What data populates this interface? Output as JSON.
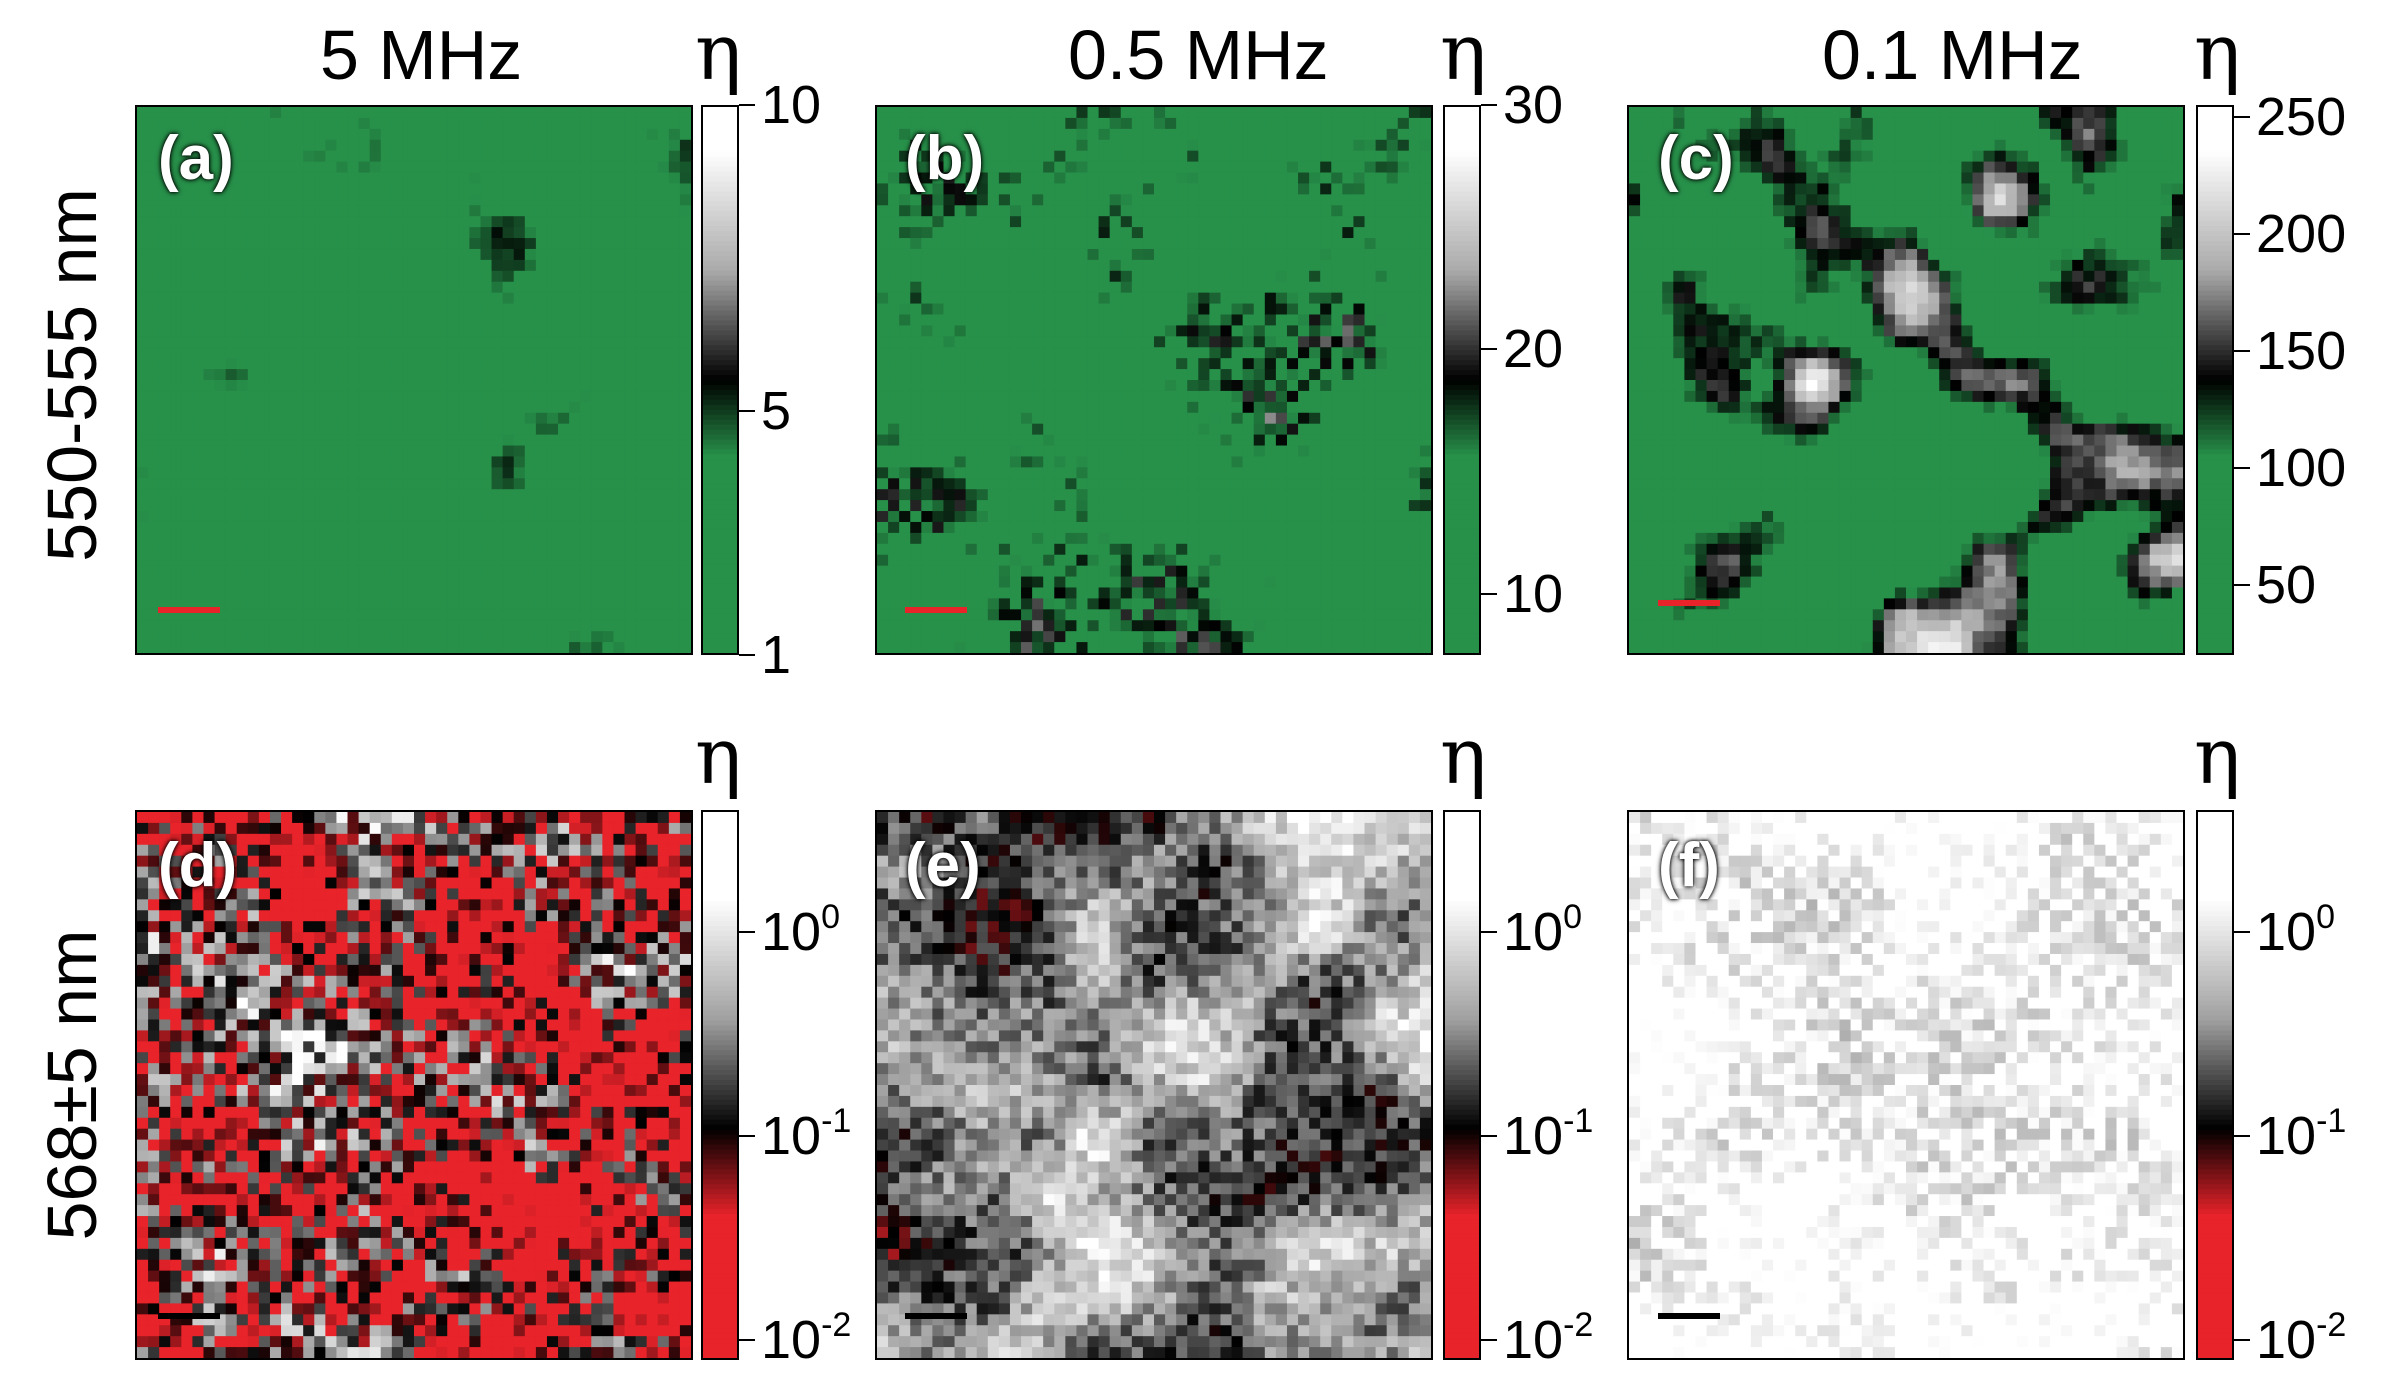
{
  "columns": [
    "5 MHz",
    "0.5 MHz",
    "0.1 MHz"
  ],
  "rows": [
    "550-555 nm",
    "568±5 nm"
  ],
  "colorbar_symbol": "η",
  "panels": [
    {
      "label": "(a)",
      "cmap": "green",
      "cbar_ticks": [
        {
          "v": 10,
          "t": "10"
        },
        {
          "v": 5,
          "t": "5"
        },
        {
          "v": 1,
          "t": "1"
        }
      ],
      "range": [
        1,
        10
      ],
      "scalebar_color": "#e8232a"
    },
    {
      "label": "(b)",
      "cmap": "green",
      "cbar_ticks": [
        {
          "v": 30,
          "t": "30"
        },
        {
          "v": 20,
          "t": "20"
        },
        {
          "v": 10,
          "t": "10"
        }
      ],
      "range": [
        7.5,
        30
      ],
      "scalebar_color": "#e8232a"
    },
    {
      "label": "(c)",
      "cmap": "green",
      "cbar_ticks": [
        {
          "v": 250,
          "t": "250"
        },
        {
          "v": 200,
          "t": "200"
        },
        {
          "v": 150,
          "t": "150"
        },
        {
          "v": 100,
          "t": "100"
        },
        {
          "v": 50,
          "t": "50"
        }
      ],
      "range": [
        20,
        255
      ],
      "scalebar_color": "#e8232a"
    },
    {
      "label": "(d)",
      "cmap": "red",
      "cbar_ticks": [
        {
          "v": 0,
          "base": "10",
          "exp": "0"
        },
        {
          "v": -1,
          "base": "10",
          "exp": "-1"
        },
        {
          "v": -2,
          "base": "10",
          "exp": "-2"
        }
      ],
      "range": [
        -2.1,
        0.6
      ],
      "scalebar_color": "#000000"
    },
    {
      "label": "(e)",
      "cmap": "red",
      "cbar_ticks": [
        {
          "v": 0,
          "base": "10",
          "exp": "0"
        },
        {
          "v": -1,
          "base": "10",
          "exp": "-1"
        },
        {
          "v": -2,
          "base": "10",
          "exp": "-2"
        }
      ],
      "range": [
        -2.1,
        0.6
      ],
      "scalebar_color": "#000000"
    },
    {
      "label": "(f)",
      "cmap": "red",
      "cbar_ticks": [
        {
          "v": 0,
          "base": "10",
          "exp": "0"
        },
        {
          "v": -1,
          "base": "10",
          "exp": "-1"
        },
        {
          "v": -2,
          "base": "10",
          "exp": "-2"
        }
      ],
      "range": [
        -2.1,
        0.6
      ],
      "scalebar_color": "#000000"
    }
  ],
  "colors": {
    "green": "#27914a",
    "red": "#e8232a",
    "black": "#000000",
    "white": "#ffffff"
  },
  "chart_data": {
    "type": "heatmap",
    "panels": [
      {
        "label": "(a)",
        "column": "5 MHz",
        "row": "550-555 nm",
        "colorbar_range": [
          1,
          10
        ],
        "colorbar_ticks": [
          1,
          5,
          10
        ],
        "colormap": "green-black-white"
      },
      {
        "label": "(b)",
        "column": "0.5 MHz",
        "row": "550-555 nm",
        "colorbar_range": [
          7.5,
          30
        ],
        "colorbar_ticks": [
          10,
          20,
          30
        ],
        "colormap": "green-black-white"
      },
      {
        "label": "(c)",
        "column": "0.1 MHz",
        "row": "550-555 nm",
        "colorbar_range": [
          20,
          255
        ],
        "colorbar_ticks": [
          50,
          100,
          150,
          200,
          250
        ],
        "colormap": "green-black-white"
      },
      {
        "label": "(d)",
        "column": "5 MHz",
        "row": "568±5 nm",
        "colorbar_scale": "log",
        "colorbar_ticks": [
          0.01,
          0.1,
          1
        ],
        "colormap": "red-black-white"
      },
      {
        "label": "(e)",
        "column": "0.5 MHz",
        "row": "568±5 nm",
        "colorbar_scale": "log",
        "colorbar_ticks": [
          0.01,
          0.1,
          1
        ],
        "colormap": "red-black-white"
      },
      {
        "label": "(f)",
        "column": "0.1 MHz",
        "row": "568±5 nm",
        "colorbar_scale": "log",
        "colorbar_ticks": [
          0.01,
          0.1,
          1
        ],
        "colormap": "red-black-white"
      }
    ]
  }
}
